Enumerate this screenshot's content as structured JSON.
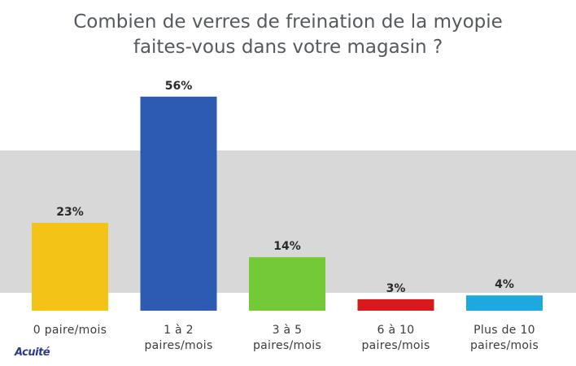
{
  "title_lines": [
    "Combien de verres de freination de la myopie",
    "faites-vous dans votre magasin ?"
  ],
  "logo_text": "Acuité",
  "chart_data": {
    "type": "bar",
    "title": "Combien de verres de freination de la myopie faites-vous dans votre magasin ?",
    "categories": [
      [
        "0 paire/mois"
      ],
      [
        "1 à 2",
        "paires/mois"
      ],
      [
        "3 à 5",
        "paires/mois"
      ],
      [
        "6 à 10",
        "paires/mois"
      ],
      [
        "Plus de 10",
        "paires/mois"
      ]
    ],
    "values": [
      23,
      56,
      14,
      3,
      4
    ],
    "data_labels": [
      "23%",
      "56%",
      "14%",
      "3%",
      "4%"
    ],
    "unit": "%",
    "colors": [
      "#f3c417",
      "#2d5bb3",
      "#74c936",
      "#d81a1c",
      "#1ea8e0"
    ],
    "grid": false,
    "legend": "none"
  }
}
